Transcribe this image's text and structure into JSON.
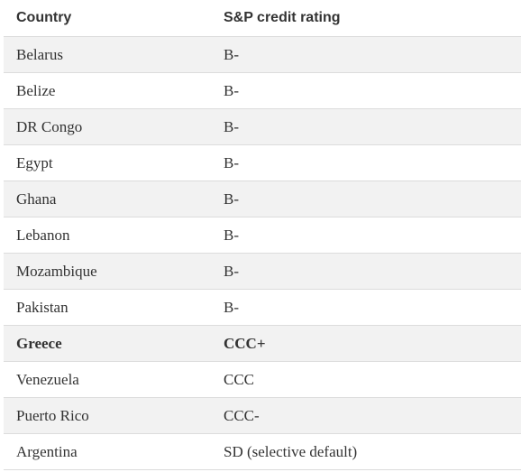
{
  "table": {
    "headers": {
      "country": "Country",
      "rating": "S&P credit rating"
    },
    "rows": [
      {
        "country": "Belarus",
        "rating": "B-",
        "bold": false
      },
      {
        "country": "Belize",
        "rating": "B-",
        "bold": false
      },
      {
        "country": "DR Congo",
        "rating": "B-",
        "bold": false
      },
      {
        "country": "Egypt",
        "rating": "B-",
        "bold": false
      },
      {
        "country": "Ghana",
        "rating": "B-",
        "bold": false
      },
      {
        "country": "Lebanon",
        "rating": "B-",
        "bold": false
      },
      {
        "country": "Mozambique",
        "rating": "B-",
        "bold": false
      },
      {
        "country": "Pakistan",
        "rating": "B-",
        "bold": false
      },
      {
        "country": "Greece",
        "rating": "CCC+",
        "bold": true
      },
      {
        "country": "Venezuela",
        "rating": "CCC",
        "bold": false
      },
      {
        "country": "Puerto Rico",
        "rating": "CCC-",
        "bold": false
      },
      {
        "country": "Argentina",
        "rating": "SD (selective default)",
        "bold": false
      }
    ]
  },
  "colors": {
    "text": "#333333",
    "row_shade": "#f2f2f2",
    "divider": "#dcdcdc"
  }
}
